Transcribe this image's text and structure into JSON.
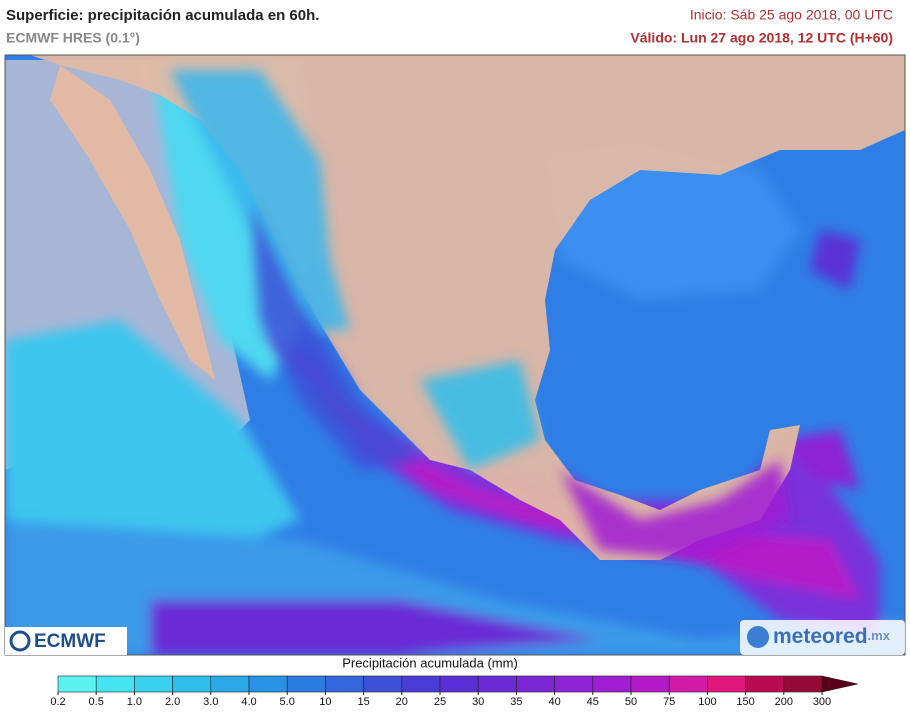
{
  "header": {
    "title": "Superficie: precipitación acumulada en 60h.",
    "model": "ECMWF HRES (0.1°)",
    "init": "Inicio: Sáb 25 ago 2018, 00 UTC",
    "valid": "Válido: Lun 27 ago 2018, 12 UTC (H+60)"
  },
  "logos": {
    "left": "ECMWF",
    "right": "meteored",
    "right_suffix": ".mx"
  },
  "legend": {
    "title": "Precipitación acumulada (mm)",
    "ticks": [
      0.2,
      0.5,
      {
        "value": 1,
        "label": "1.0"
      },
      {
        "value": 2,
        "label": "2.0"
      },
      {
        "value": 3,
        "label": "3.0"
      },
      {
        "value": 4,
        "label": "4.0"
      },
      {
        "value": 5,
        "label": "5.0"
      },
      10,
      15,
      20,
      25,
      30,
      35,
      40,
      45,
      50,
      75,
      100,
      150,
      200,
      300
    ],
    "colors": [
      "#5cf2f2",
      "#46e4f2",
      "#38d2f0",
      "#2fbeec",
      "#2aa8e8",
      "#2892e4",
      "#2c7ce0",
      "#3466dc",
      "#3c50d8",
      "#4a3cd6",
      "#5a30d6",
      "#6a2ad6",
      "#7c26d6",
      "#8e22d6",
      "#a01ed4",
      "#b41ac8",
      "#d21aa6",
      "#e0187c",
      "#b80c52",
      "#960a3a"
    ],
    "over_color": "#5a0018"
  }
}
